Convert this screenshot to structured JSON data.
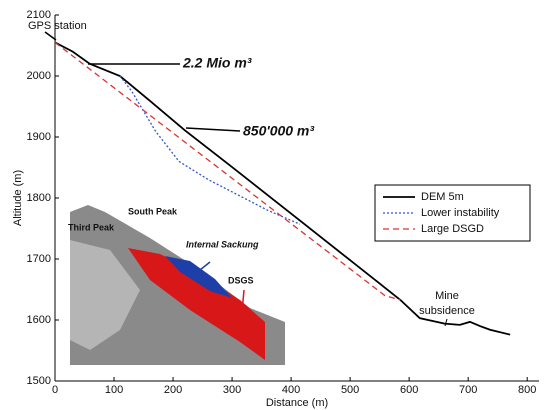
{
  "chart_data": {
    "type": "line",
    "xlabel": "Distance (m)",
    "ylabel": "Altitude (m)",
    "xlim": [
      0,
      820
    ],
    "ylim": [
      1500,
      2100
    ],
    "xticks": [
      0,
      100,
      200,
      300,
      400,
      500,
      600,
      700,
      800
    ],
    "yticks": [
      1500,
      1600,
      1700,
      1800,
      1900,
      2000,
      2100
    ],
    "grid": false,
    "legend": "center right",
    "series": [
      {
        "name": "DEM 5m",
        "color": "#000000",
        "dash": "solid",
        "x": [
          0,
          30,
          59,
          110,
          160,
          220,
          297,
          415,
          500,
          585,
          618,
          660,
          686,
          703,
          720,
          737,
          771
        ],
        "values": [
          2055,
          2040,
          2020,
          2000,
          1960,
          1911,
          1853,
          1763,
          1698,
          1633,
          1603,
          1594,
          1592,
          1597,
          1590,
          1584,
          1576
        ]
      },
      {
        "name": "Lower instability",
        "color": "#3355cc",
        "dash": "dotted",
        "x": [
          110,
          130,
          170,
          210,
          260,
          310,
          360,
          415
        ],
        "values": [
          2000,
          1975,
          1910,
          1860,
          1830,
          1805,
          1780,
          1757
        ]
      },
      {
        "name": "Large DSGD",
        "color": "#dd3333",
        "dash": "dashed",
        "x": [
          0,
          559,
          585
        ],
        "values": [
          2055,
          1640,
          1633
        ]
      }
    ],
    "annotations": [
      "GPS station",
      "2.2 Mio m³",
      "850'000 m³",
      "Mine",
      "subsidence"
    ],
    "inset_labels": [
      "South Peak",
      "Third Peak",
      "Internal Sackung",
      "DSGS"
    ]
  }
}
